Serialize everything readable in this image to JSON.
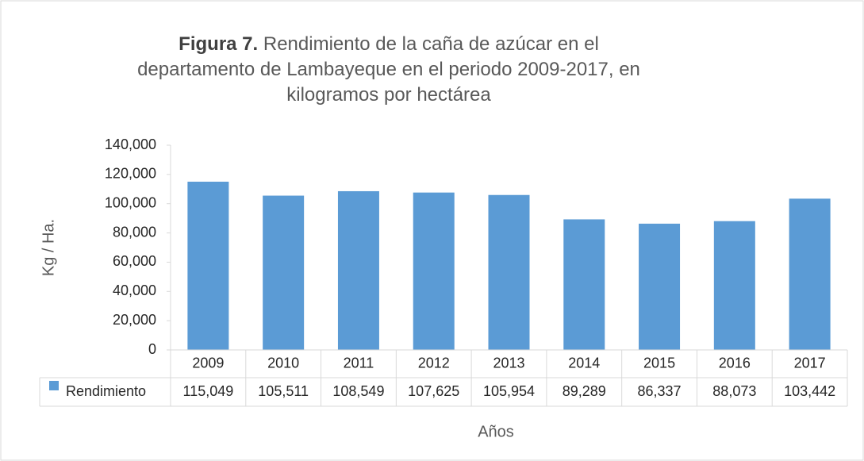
{
  "chart_data": {
    "type": "bar",
    "figure_label": "Figura 7.",
    "title": "Rendimiento de la caña de azúcar en el departamento de Lambayeque en el periodo 2009-2017, en kilogramos por hectárea",
    "y_label": "Kg / Ha.",
    "x_label": "Años",
    "categories": [
      "2009",
      "2010",
      "2011",
      "2012",
      "2013",
      "2014",
      "2015",
      "2016",
      "2017"
    ],
    "series": [
      {
        "name": "Rendimiento",
        "color": "#5b9bd5",
        "values": [
          115049,
          105511,
          108549,
          107625,
          105954,
          89289,
          86337,
          88073,
          103442
        ],
        "value_labels": [
          "115,049",
          "105,511",
          "108,549",
          "107,625",
          "105,954",
          "89,289",
          "86,337",
          "88,073",
          "103,442"
        ]
      }
    ],
    "ylim": [
      0,
      140000
    ],
    "yticks": [
      0,
      {
        "value": 20000,
        "label": "20,000"
      },
      {
        "value": 40000,
        "label": "40,000"
      },
      {
        "value": 60000,
        "label": "60,000"
      },
      {
        "value": 80000,
        "label": "80,000"
      },
      {
        "value": 100000,
        "label": "100,000"
      },
      {
        "value": 120000,
        "label": "120,000"
      },
      {
        "value": 140000,
        "label": "140,000"
      }
    ],
    "data_table": true
  }
}
